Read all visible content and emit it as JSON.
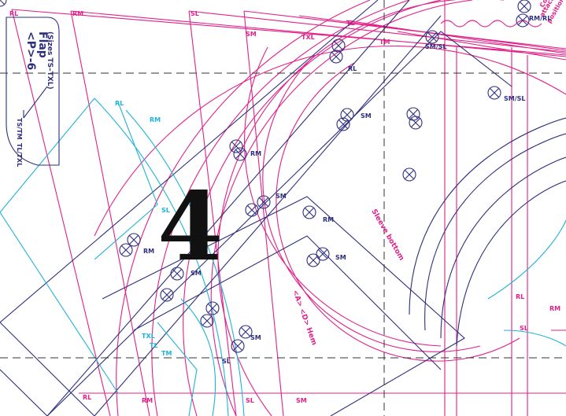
{
  "page_number": "4",
  "flap_piece": {
    "code": "<P>-6",
    "name": "Flap",
    "sizes": "(Sizes TS–TXL)",
    "size_marks": [
      "TS/TM",
      "TL/TXL"
    ]
  },
  "annotations": {
    "sleeve_bottom": "Sleeve bottom",
    "hem": "<A> <D> Hem",
    "collar": [
      "Collar",
      "attachment",
      "position"
    ]
  },
  "size_labels": {
    "rl": "RL",
    "rm": "RM",
    "sl": "SL",
    "sm": "SM",
    "txl": "TXL",
    "tl": "TL",
    "tm": "TM",
    "smsl": "SM/SL",
    "rmrl": "RM/RL"
  }
}
